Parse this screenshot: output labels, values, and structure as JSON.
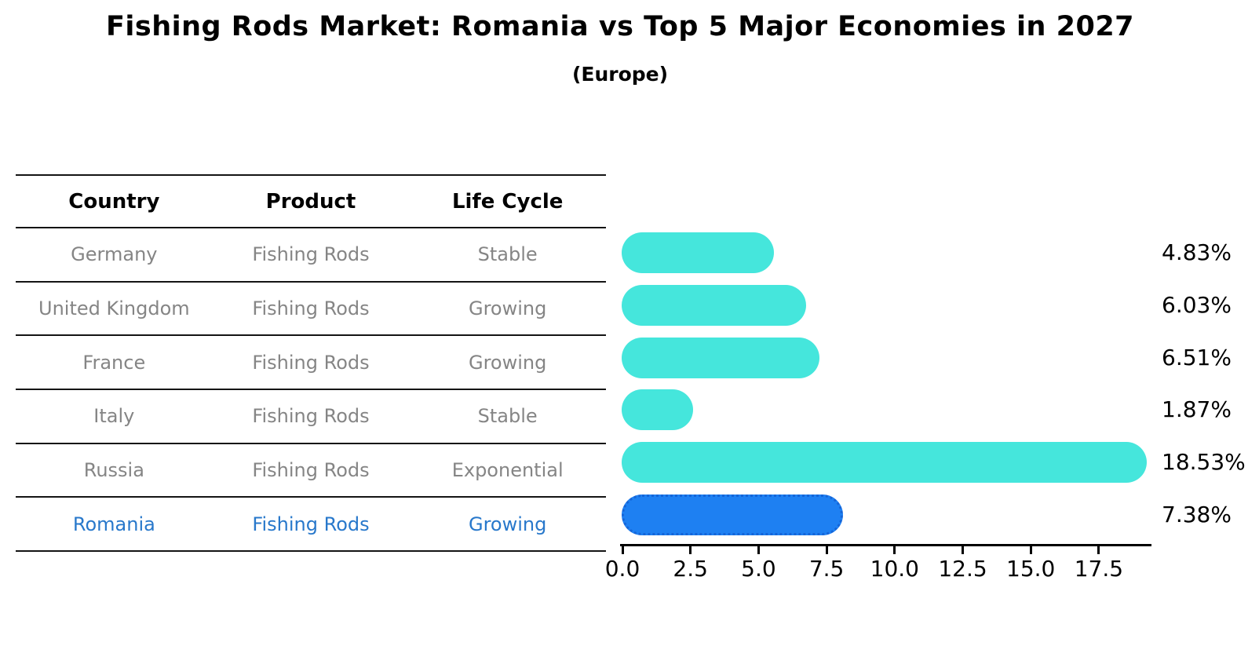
{
  "title": "Fishing Rods Market: Romania vs Top 5 Major Economies in 2027",
  "subtitle": "(Europe)",
  "table": {
    "headers": [
      "Country",
      "Product",
      "Life Cycle"
    ],
    "rows": [
      {
        "country": "Germany",
        "product": "Fishing Rods",
        "life_cycle": "Stable",
        "highlight": false
      },
      {
        "country": "United Kingdom",
        "product": "Fishing Rods",
        "life_cycle": "Growing",
        "highlight": false
      },
      {
        "country": "France",
        "product": "Fishing Rods",
        "life_cycle": "Growing",
        "highlight": false
      },
      {
        "country": "Italy",
        "product": "Fishing Rods",
        "life_cycle": "Stable",
        "highlight": false
      },
      {
        "country": "Russia",
        "product": "Fishing Rods",
        "life_cycle": "Exponential",
        "highlight": false
      },
      {
        "country": "Romania",
        "product": "Fishing Rods",
        "life_cycle": "Growing",
        "highlight": true
      }
    ]
  },
  "chart_data": {
    "type": "bar",
    "orientation": "horizontal",
    "title": "Fishing Rods Market: Romania vs Top 5 Major Economies in 2027",
    "subtitle": "(Europe)",
    "categories": [
      "Germany",
      "United Kingdom",
      "France",
      "Italy",
      "Russia",
      "Romania"
    ],
    "values": [
      4.83,
      6.03,
      6.51,
      1.87,
      18.53,
      7.38
    ],
    "value_labels": [
      "4.83%",
      "6.03%",
      "6.51%",
      "1.87%",
      "18.53%",
      "7.38%"
    ],
    "unit": "%",
    "x_tick_labels": [
      "0.0",
      "2.5",
      "5.0",
      "7.5",
      "10.0",
      "12.5",
      "15.0",
      "17.5"
    ],
    "x_tick_values": [
      0,
      2.5,
      5,
      7.5,
      10,
      12.5,
      15,
      17.5
    ],
    "xlim": [
      0,
      19.5
    ],
    "grid": false,
    "legend": "none",
    "highlight_category": "Romania"
  },
  "colors": {
    "bar_default": "#45E6DC",
    "bar_highlight": "#1E80F2",
    "bar_highlight_border": "#1565D8",
    "row_text": "#858585",
    "highlight_text": "#2878CB",
    "header_text": "#000000",
    "axis": "#000000"
  }
}
